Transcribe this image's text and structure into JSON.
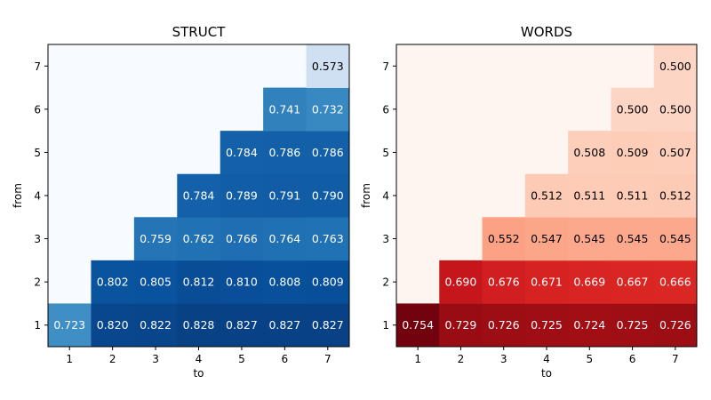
{
  "chart_data": [
    {
      "type": "heatmap",
      "title": "STRUCT",
      "xlabel": "to",
      "ylabel": "from",
      "x_ticks": [
        "1",
        "2",
        "3",
        "4",
        "5",
        "6",
        "7"
      ],
      "y_ticks": [
        "1",
        "2",
        "3",
        "4",
        "5",
        "6",
        "7"
      ],
      "colormap": "Blues",
      "vmin": 0.5,
      "vmax": 0.85,
      "label_format": "3dp",
      "rows": [
        {
          "from": 1,
          "values": [
            0.723,
            0.82,
            0.822,
            0.828,
            0.827,
            0.827,
            0.827
          ]
        },
        {
          "from": 2,
          "values": [
            null,
            0.802,
            0.805,
            0.812,
            0.81,
            0.808,
            0.809
          ]
        },
        {
          "from": 3,
          "values": [
            null,
            null,
            0.759,
            0.762,
            0.766,
            0.764,
            0.763
          ]
        },
        {
          "from": 4,
          "values": [
            null,
            null,
            null,
            0.784,
            0.789,
            0.791,
            0.79
          ]
        },
        {
          "from": 5,
          "values": [
            null,
            null,
            null,
            null,
            0.784,
            0.786,
            0.786
          ]
        },
        {
          "from": 6,
          "values": [
            null,
            null,
            null,
            null,
            null,
            0.741,
            0.732
          ]
        },
        {
          "from": 7,
          "values": [
            null,
            null,
            null,
            null,
            null,
            null,
            0.573
          ]
        }
      ]
    },
    {
      "type": "heatmap",
      "title": "WORDS",
      "xlabel": "to",
      "ylabel": "from",
      "x_ticks": [
        "1",
        "2",
        "3",
        "4",
        "5",
        "6",
        "7"
      ],
      "y_ticks": [
        "1",
        "2",
        "3",
        "4",
        "5",
        "6",
        "7"
      ],
      "colormap": "Reds",
      "vmin": 0.45,
      "vmax": 0.76,
      "label_format": "3dp",
      "rows": [
        {
          "from": 1,
          "values": [
            0.754,
            0.729,
            0.726,
            0.725,
            0.724,
            0.725,
            0.726
          ]
        },
        {
          "from": 2,
          "values": [
            null,
            0.69,
            0.676,
            0.671,
            0.669,
            0.667,
            0.666
          ]
        },
        {
          "from": 3,
          "values": [
            null,
            null,
            0.552,
            0.547,
            0.545,
            0.545,
            0.545
          ]
        },
        {
          "from": 4,
          "values": [
            null,
            null,
            null,
            0.512,
            0.511,
            0.511,
            0.512
          ]
        },
        {
          "from": 5,
          "values": [
            null,
            null,
            null,
            null,
            0.508,
            0.509,
            0.507
          ]
        },
        {
          "from": 6,
          "values": [
            null,
            null,
            null,
            null,
            null,
            0.5,
            0.5
          ]
        },
        {
          "from": 7,
          "values": [
            null,
            null,
            null,
            null,
            null,
            null,
            0.5
          ]
        }
      ]
    }
  ]
}
